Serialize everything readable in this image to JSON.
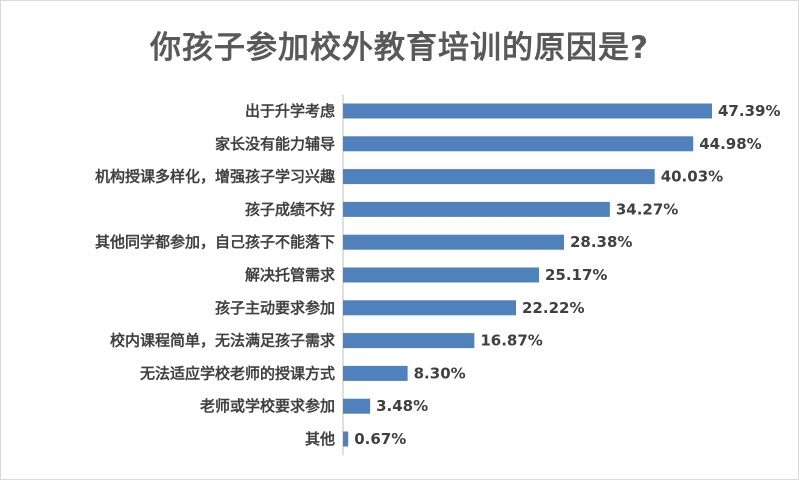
{
  "chart_data": {
    "type": "bar",
    "orientation": "horizontal",
    "title": "你孩子参加校外教育培训的原因是?",
    "categories": [
      "出于升学考虑",
      "家长没有能力辅导",
      "机构授课多样化，增强孩子学习兴趣",
      "孩子成绩不好",
      "其他同学都参加，自己孩子不能落下",
      "解决托管需求",
      "孩子主动要求参加",
      "校内课程简单，无法满足孩子需求",
      "无法适应学校老师的授课方式",
      "老师或学校要求参加",
      "其他"
    ],
    "values": [
      47.39,
      44.98,
      40.03,
      34.27,
      28.38,
      25.17,
      22.22,
      16.87,
      8.3,
      3.48,
      0.67
    ],
    "value_labels": [
      "47.39%",
      "44.98%",
      "40.03%",
      "34.27%",
      "28.38%",
      "25.17%",
      "22.22%",
      "16.87%",
      "8.30%",
      "3.48%",
      "0.67%"
    ],
    "xlim": [
      0,
      50
    ],
    "grid": false,
    "legend": "none",
    "bar_color": "#4f81bd"
  }
}
